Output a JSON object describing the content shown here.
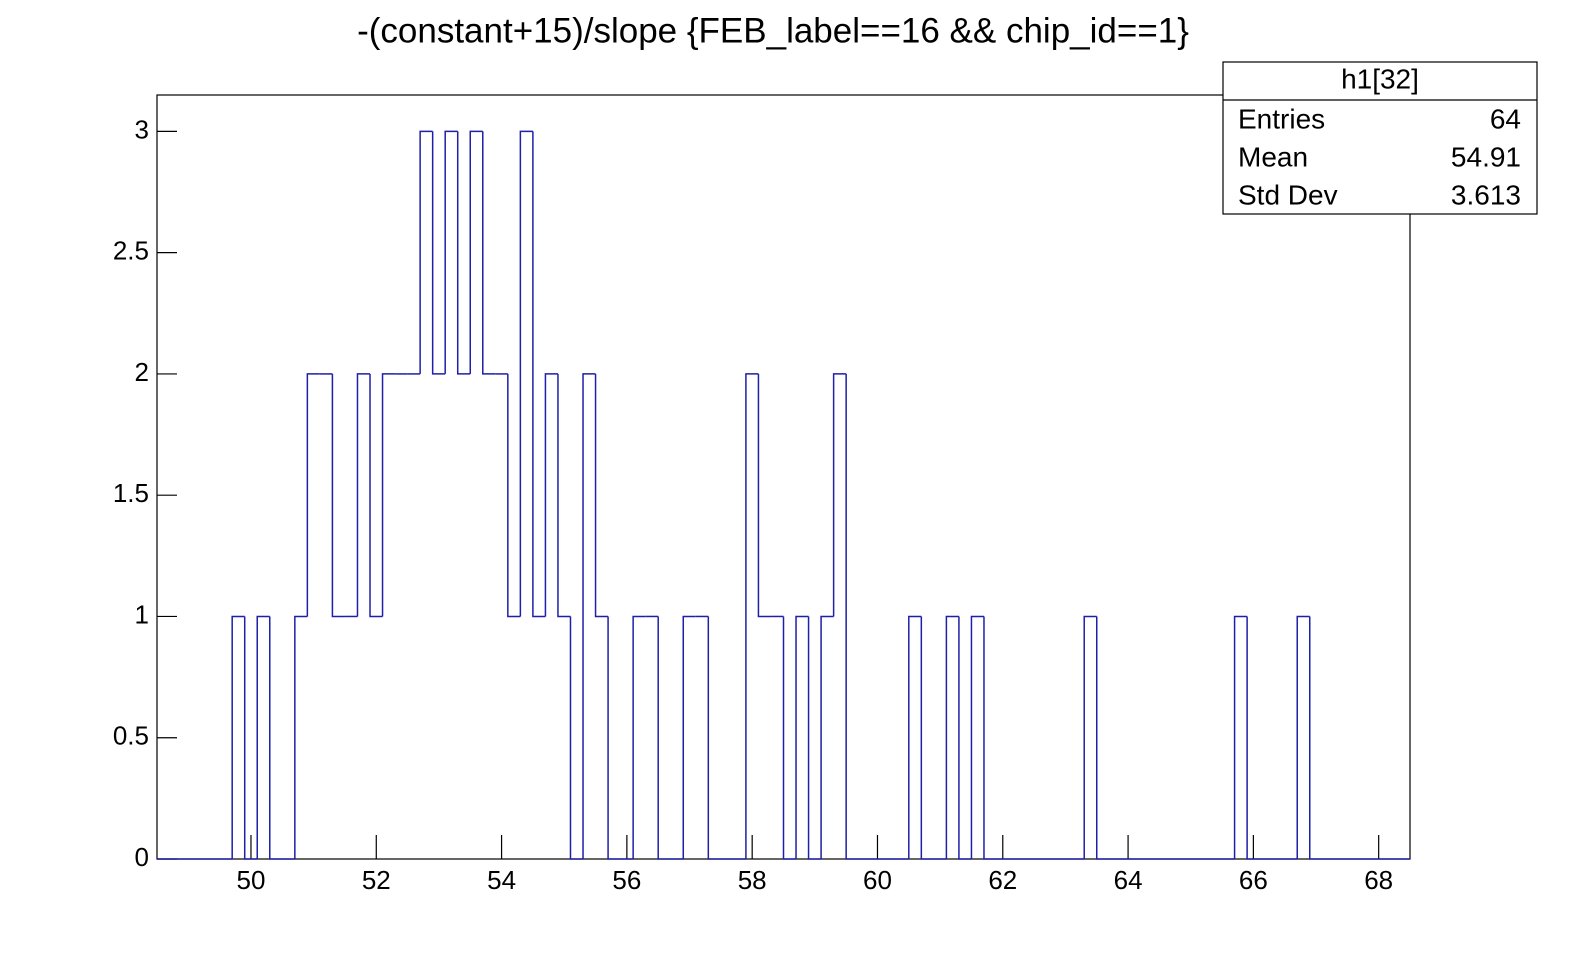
{
  "chart_data": {
    "type": "histogram",
    "title": "-(constant+15)/slope {FEB_label==16 && chip_id==1}",
    "color": "#1f1fa8",
    "bins": [
      48.5,
      48.7,
      48.9,
      49.1,
      49.3,
      49.5,
      49.7,
      49.9,
      50.1,
      50.3,
      50.5,
      50.7,
      50.9,
      51.1,
      51.3,
      51.5,
      51.7,
      51.9,
      52.1,
      52.3,
      52.5,
      52.7,
      52.9,
      53.1,
      53.3,
      53.5,
      53.7,
      53.9,
      54.1,
      54.3,
      54.5,
      54.7,
      54.9,
      55.1,
      55.3,
      55.5,
      55.7,
      55.9,
      56.1,
      56.3,
      56.5,
      56.7,
      56.9,
      57.1,
      57.3,
      57.5,
      57.7,
      57.9,
      58.1,
      58.3,
      58.5,
      58.7,
      58.9,
      59.1,
      59.3,
      59.5,
      59.7,
      59.9,
      60.1,
      60.3,
      60.5,
      60.7,
      60.9,
      61.1,
      61.3,
      61.5,
      61.7,
      61.9,
      62.1,
      62.3,
      62.5,
      62.7,
      62.9,
      63.1,
      63.3,
      63.5,
      63.7,
      63.9,
      64.1,
      64.3,
      64.5,
      64.7,
      64.9,
      65.1,
      65.3,
      65.5,
      65.7,
      65.9,
      66.1,
      66.3,
      66.5,
      66.7,
      66.9,
      67.1,
      67.3,
      67.5,
      67.7,
      67.9,
      68.1,
      68.3,
      68.5
    ],
    "values": [
      0,
      0,
      0,
      0,
      0,
      0,
      1,
      0,
      1,
      0,
      0,
      1,
      2,
      2,
      1,
      1,
      2,
      1,
      2,
      2,
      2,
      3,
      2,
      3,
      2,
      3,
      2,
      2,
      1,
      3,
      1,
      2,
      1,
      0,
      2,
      1,
      0,
      0,
      1,
      1,
      0,
      0,
      1,
      1,
      0,
      0,
      0,
      2,
      1,
      1,
      0,
      1,
      0,
      1,
      2,
      0,
      0,
      0,
      0,
      0,
      1,
      0,
      0,
      1,
      0,
      1,
      0,
      0,
      0,
      0,
      0,
      0,
      0,
      0,
      1,
      0,
      0,
      0,
      0,
      0,
      0,
      0,
      0,
      0,
      0,
      0,
      1,
      0,
      0,
      0,
      0,
      1,
      0,
      0,
      0,
      0,
      0,
      0,
      0,
      0
    ],
    "xlim": [
      48.5,
      68.5
    ],
    "xticks": [
      50,
      52,
      54,
      56,
      58,
      60,
      62,
      64,
      66,
      68
    ],
    "ylim": [
      0,
      3.15
    ],
    "yticks": [
      0,
      0.5,
      1,
      1.5,
      2,
      2.5,
      3
    ],
    "stats": {
      "title": "h1[32]",
      "rows": [
        {
          "label": "Entries",
          "value": 64
        },
        {
          "label": "Mean",
          "value": 54.91
        },
        {
          "label": "Std Dev",
          "value": 3.613
        }
      ]
    }
  }
}
